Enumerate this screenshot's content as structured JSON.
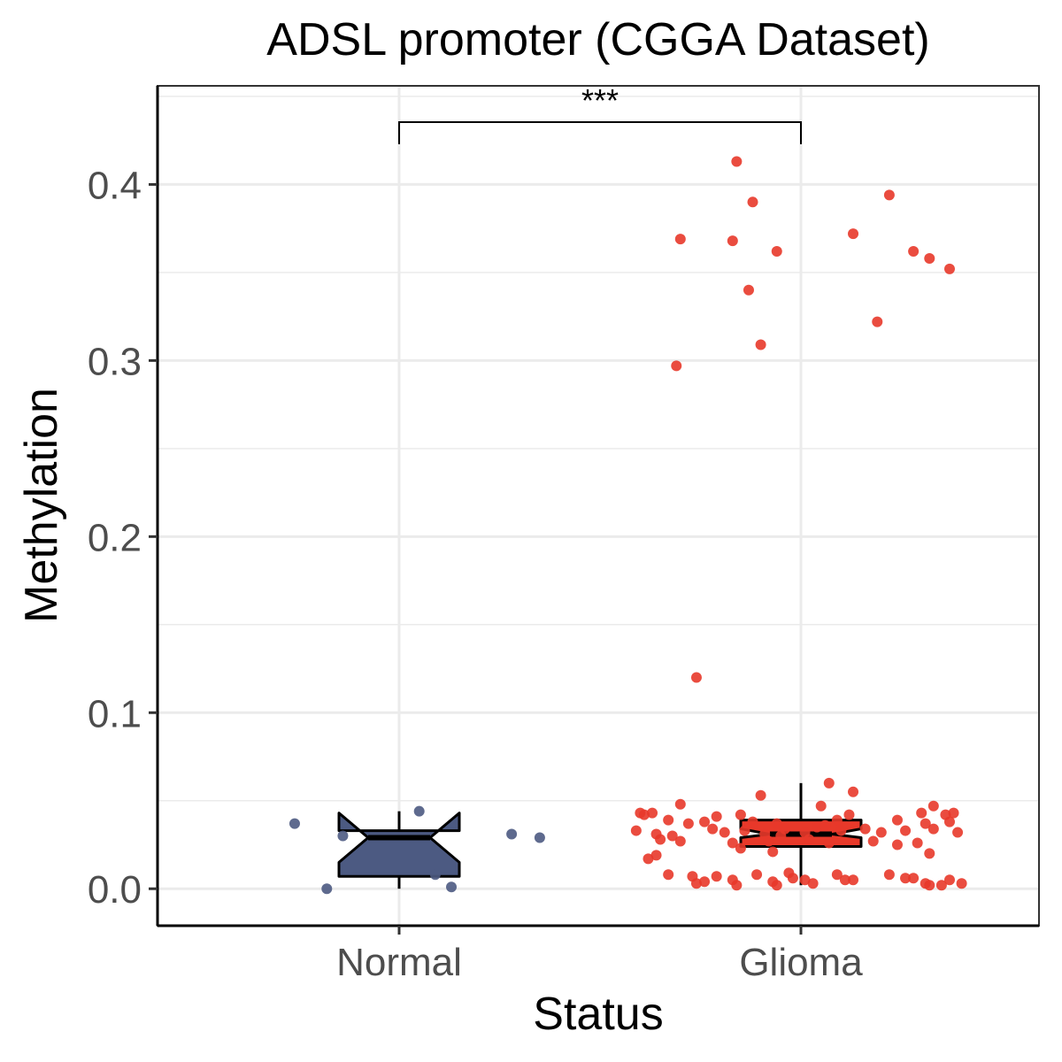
{
  "chart_data": {
    "type": "box",
    "title": "ADSL promoter (CGGA Dataset)",
    "xlabel": "Status",
    "ylabel": "Methylation",
    "categories": [
      "Normal",
      "Glioma"
    ],
    "ylim": [
      -0.021,
      0.456
    ],
    "yticks": [
      "0.0",
      "0.1",
      "0.2",
      "0.3",
      "0.4"
    ],
    "grid": true,
    "notched": true,
    "significance": {
      "groups": [
        "Normal",
        "Glioma"
      ],
      "label": "***"
    },
    "series": [
      {
        "category": "Normal",
        "color": "#4c5a82",
        "box": {
          "min": 0.0,
          "q1": 0.007,
          "median": 0.029,
          "q3": 0.033,
          "max": 0.044,
          "notch_low": 0.015,
          "notch_high": 0.043
        },
        "points": [
          {
            "x": -0.26,
            "y": 0.037
          },
          {
            "x": -0.14,
            "y": 0.03
          },
          {
            "x": -0.18,
            "y": 0.0
          },
          {
            "x": 0.05,
            "y": 0.044
          },
          {
            "x": 0.09,
            "y": 0.008
          },
          {
            "x": 0.13,
            "y": 0.001
          },
          {
            "x": 0.28,
            "y": 0.031
          },
          {
            "x": 0.35,
            "y": 0.029
          }
        ]
      },
      {
        "category": "Glioma",
        "color": "#e8392a",
        "box": {
          "min": 0.002,
          "q1": 0.024,
          "median": 0.031,
          "q3": 0.039,
          "max": 0.06,
          "notch_low": 0.029,
          "notch_high": 0.034
        },
        "points": [
          {
            "x": -0.16,
            "y": 0.413
          },
          {
            "x": -0.12,
            "y": 0.39
          },
          {
            "x": 0.22,
            "y": 0.394
          },
          {
            "x": -0.3,
            "y": 0.369
          },
          {
            "x": -0.17,
            "y": 0.368
          },
          {
            "x": 0.13,
            "y": 0.372
          },
          {
            "x": -0.06,
            "y": 0.362
          },
          {
            "x": 0.28,
            "y": 0.362
          },
          {
            "x": 0.32,
            "y": 0.358
          },
          {
            "x": 0.37,
            "y": 0.352
          },
          {
            "x": -0.13,
            "y": 0.34
          },
          {
            "x": 0.19,
            "y": 0.322
          },
          {
            "x": -0.1,
            "y": 0.309
          },
          {
            "x": -0.31,
            "y": 0.297
          },
          {
            "x": -0.26,
            "y": 0.12
          },
          {
            "x": 0.07,
            "y": 0.06
          },
          {
            "x": 0.13,
            "y": 0.055
          },
          {
            "x": -0.1,
            "y": 0.053
          },
          {
            "x": -0.3,
            "y": 0.048
          },
          {
            "x": 0.05,
            "y": 0.047
          },
          {
            "x": 0.33,
            "y": 0.047
          },
          {
            "x": -0.4,
            "y": 0.043
          },
          {
            "x": -0.39,
            "y": 0.042
          },
          {
            "x": -0.37,
            "y": 0.043
          },
          {
            "x": -0.15,
            "y": 0.042
          },
          {
            "x": -0.21,
            "y": 0.041
          },
          {
            "x": 0.12,
            "y": 0.042
          },
          {
            "x": 0.3,
            "y": 0.043
          },
          {
            "x": 0.36,
            "y": 0.042
          },
          {
            "x": 0.38,
            "y": 0.043
          },
          {
            "x": -0.33,
            "y": 0.039
          },
          {
            "x": -0.28,
            "y": 0.037
          },
          {
            "x": -0.24,
            "y": 0.038
          },
          {
            "x": -0.12,
            "y": 0.038
          },
          {
            "x": -0.06,
            "y": 0.037
          },
          {
            "x": 0.09,
            "y": 0.039
          },
          {
            "x": 0.24,
            "y": 0.039
          },
          {
            "x": 0.31,
            "y": 0.037
          },
          {
            "x": 0.37,
            "y": 0.038
          },
          {
            "x": -0.41,
            "y": 0.033
          },
          {
            "x": -0.36,
            "y": 0.031
          },
          {
            "x": -0.32,
            "y": 0.03
          },
          {
            "x": -0.22,
            "y": 0.034
          },
          {
            "x": -0.19,
            "y": 0.032
          },
          {
            "x": -0.14,
            "y": 0.033
          },
          {
            "x": -0.09,
            "y": 0.031
          },
          {
            "x": -0.05,
            "y": 0.03
          },
          {
            "x": 0.01,
            "y": 0.032
          },
          {
            "x": 0.04,
            "y": 0.035
          },
          {
            "x": 0.1,
            "y": 0.033
          },
          {
            "x": 0.16,
            "y": 0.034
          },
          {
            "x": 0.2,
            "y": 0.032
          },
          {
            "x": 0.26,
            "y": 0.033
          },
          {
            "x": 0.33,
            "y": 0.034
          },
          {
            "x": 0.39,
            "y": 0.032
          },
          {
            "x": -0.35,
            "y": 0.028
          },
          {
            "x": -0.3,
            "y": 0.027
          },
          {
            "x": -0.17,
            "y": 0.026
          },
          {
            "x": -0.08,
            "y": 0.027
          },
          {
            "x": 0.02,
            "y": 0.028
          },
          {
            "x": 0.07,
            "y": 0.026
          },
          {
            "x": 0.18,
            "y": 0.027
          },
          {
            "x": 0.24,
            "y": 0.025
          },
          {
            "x": 0.29,
            "y": 0.026
          },
          {
            "x": -0.15,
            "y": 0.023
          },
          {
            "x": -0.07,
            "y": 0.021
          },
          {
            "x": 0.32,
            "y": 0.02
          },
          {
            "x": -0.36,
            "y": 0.019
          },
          {
            "x": -0.38,
            "y": 0.017
          },
          {
            "x": -0.33,
            "y": 0.008
          },
          {
            "x": -0.27,
            "y": 0.007
          },
          {
            "x": -0.21,
            "y": 0.007
          },
          {
            "x": -0.11,
            "y": 0.008
          },
          {
            "x": -0.03,
            "y": 0.009
          },
          {
            "x": 0.09,
            "y": 0.008
          },
          {
            "x": 0.22,
            "y": 0.008
          },
          {
            "x": 0.26,
            "y": 0.006
          },
          {
            "x": -0.26,
            "y": 0.003
          },
          {
            "x": -0.24,
            "y": 0.004
          },
          {
            "x": -0.17,
            "y": 0.005
          },
          {
            "x": -0.16,
            "y": 0.002
          },
          {
            "x": -0.07,
            "y": 0.004
          },
          {
            "x": -0.06,
            "y": 0.002
          },
          {
            "x": -0.02,
            "y": 0.006
          },
          {
            "x": 0.03,
            "y": 0.003
          },
          {
            "x": 0.11,
            "y": 0.005
          },
          {
            "x": 0.13,
            "y": 0.005
          },
          {
            "x": 0.31,
            "y": 0.003
          },
          {
            "x": 0.32,
            "y": 0.002
          },
          {
            "x": 0.35,
            "y": 0.002
          },
          {
            "x": 0.37,
            "y": 0.005
          },
          {
            "x": 0.4,
            "y": 0.003
          },
          {
            "x": 0.01,
            "y": 0.005
          },
          {
            "x": 0.28,
            "y": 0.006
          },
          {
            "x": -0.04,
            "y": 0.034
          },
          {
            "x": 0.06,
            "y": 0.036
          }
        ]
      }
    ]
  }
}
